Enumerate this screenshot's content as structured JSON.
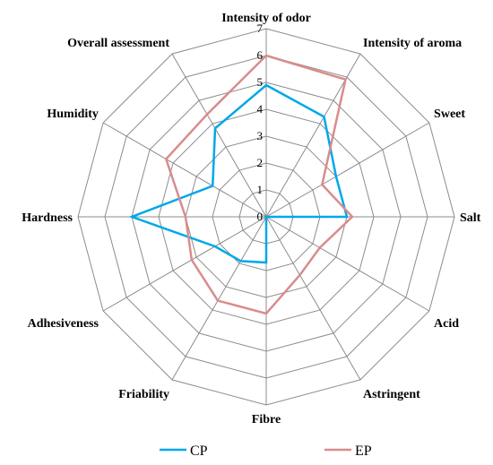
{
  "chart_data": {
    "type": "radar",
    "axes": [
      "Intensity of odor",
      "Intensity of aroma",
      "Sweet",
      "Salt",
      "Acid",
      "Astringent",
      "Fibre",
      "Friability",
      "Adhesiveness",
      "Hardness",
      "Humidity",
      "Overall assessment"
    ],
    "rlim": [
      0,
      7
    ],
    "ticks": [
      "0",
      "1",
      "2",
      "3",
      "4",
      "5",
      "6",
      "7"
    ],
    "grid": true,
    "legend_position": "bottom",
    "series": [
      {
        "name": "CP",
        "color": "#00a8e8",
        "values": [
          4.9,
          4.3,
          3.0,
          3.0,
          0.0,
          0.0,
          1.7,
          1.9,
          2.2,
          5.0,
          2.3,
          3.8
        ]
      },
      {
        "name": "EP",
        "color": "#d98c8c",
        "values": [
          6.0,
          5.9,
          2.4,
          3.2,
          2.3,
          2.5,
          3.6,
          3.6,
          3.2,
          3.0,
          4.3,
          4.4
        ]
      }
    ]
  }
}
